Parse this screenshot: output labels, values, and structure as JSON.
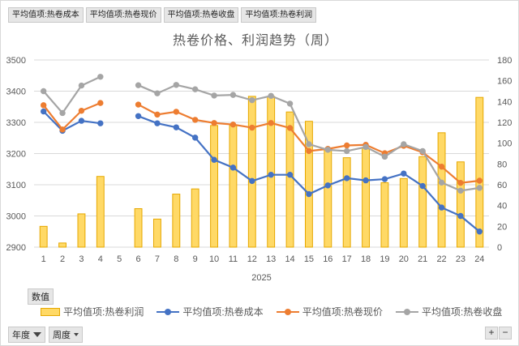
{
  "field_buttons": [
    "平均值项:热卷成本",
    "平均值项:热卷现价",
    "平均值项:热卷收盘",
    "平均值项:热卷利润"
  ],
  "values_button": "数值",
  "filters": {
    "year": "年度",
    "week": "周度"
  },
  "zoom": {
    "plus": "+",
    "minus": "−"
  },
  "colors": {
    "bar": "#ffd966",
    "bar_edge": "#e6a800",
    "cost": "#4472c4",
    "spot": "#ed7d31",
    "close": "#a5a5a5",
    "grid": "#d9d9d9"
  },
  "chart_data": {
    "type": "bar",
    "title": "热卷价格、利润趋势（周）",
    "x_group_label": "2025",
    "categories": [
      "1",
      "2",
      "3",
      "4",
      "5",
      "6",
      "7",
      "8",
      "9",
      "10",
      "11",
      "12",
      "13",
      "14",
      "15",
      "16",
      "17",
      "18",
      "19",
      "20",
      "21",
      "22",
      "23",
      "24"
    ],
    "ylim_left": [
      2900,
      3500
    ],
    "yticks_left": [
      2900,
      3000,
      3100,
      3200,
      3300,
      3400,
      3500
    ],
    "ylim_right": [
      0,
      180
    ],
    "yticks_right": [
      0,
      20,
      40,
      60,
      80,
      100,
      120,
      140,
      160,
      180
    ],
    "grid": true,
    "legend_position": "bottom",
    "series": [
      {
        "name": "平均值项:热卷利润",
        "type": "bar",
        "axis": "right",
        "color": "#ffd966",
        "values": [
          20,
          4,
          32,
          68,
          null,
          37,
          27,
          51,
          56,
          117,
          117,
          145,
          145,
          130,
          121,
          95,
          86,
          95,
          62,
          66,
          87,
          110,
          82,
          144
        ]
      },
      {
        "name": "平均值项:热卷成本",
        "type": "line",
        "axis": "left",
        "color": "#4472c4",
        "values": [
          3335,
          3273,
          3305,
          3297,
          null,
          3320,
          3297,
          3284,
          3251,
          3180,
          3155,
          3112,
          3132,
          3132,
          3070,
          3098,
          3121,
          3114,
          3118,
          3136,
          3096,
          3027,
          3000,
          2950
        ]
      },
      {
        "name": "平均值项:热卷现价",
        "type": "line",
        "axis": "left",
        "color": "#ed7d31",
        "values": [
          3355,
          3277,
          3337,
          3362,
          null,
          3357,
          3325,
          3334,
          3308,
          3298,
          3293,
          3283,
          3298,
          3282,
          3208,
          3215,
          3226,
          3228,
          3201,
          3225,
          3204,
          3158,
          3106,
          3113
        ]
      },
      {
        "name": "平均值项:热卷收盘",
        "type": "line",
        "axis": "left",
        "color": "#a5a5a5",
        "values": [
          3400,
          3330,
          3418,
          3446,
          null,
          3419,
          3393,
          3420,
          3406,
          3386,
          3388,
          3371,
          3385,
          3360,
          3230,
          3212,
          3208,
          3221,
          3190,
          3230,
          3208,
          3107,
          3081,
          3090
        ]
      }
    ]
  }
}
